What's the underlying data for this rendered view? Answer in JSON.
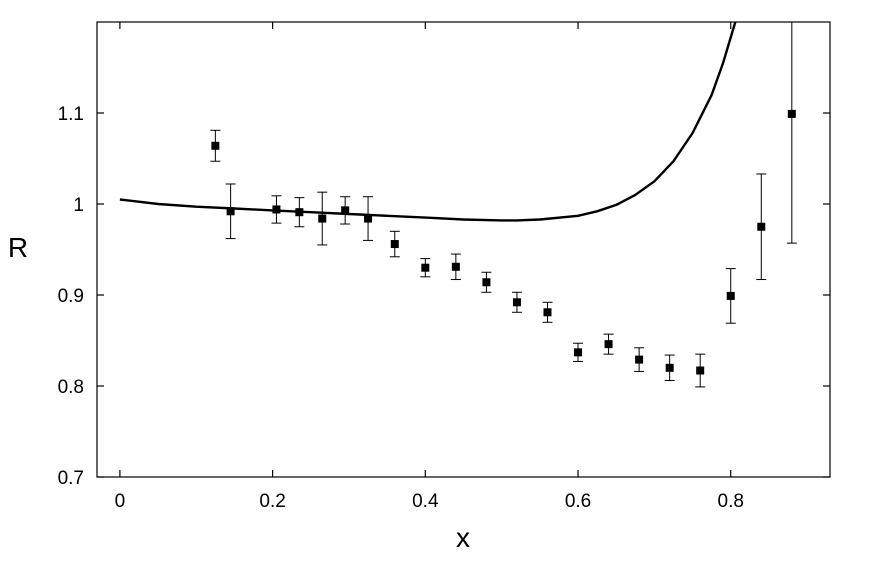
{
  "chart_data": {
    "type": "scatter",
    "title": "",
    "xlabel": "x",
    "ylabel": "R",
    "xlim": [
      -0.03,
      0.93
    ],
    "ylim": [
      0.7,
      1.2
    ],
    "x_ticks": [
      "0",
      "0.2",
      "0.4",
      "0.6",
      "0.8"
    ],
    "y_ticks": [
      "0.7",
      "0.8",
      "0.9",
      "1",
      "1.1"
    ],
    "grid": false,
    "legend": "none",
    "marker_color": "#000000",
    "series": [
      {
        "kind": "points-with-error-bars",
        "points": [
          {
            "x": 0.125,
            "y": 1.064,
            "err": 0.017
          },
          {
            "x": 0.145,
            "y": 0.992,
            "err": 0.03
          },
          {
            "x": 0.205,
            "y": 0.994,
            "err": 0.015
          },
          {
            "x": 0.235,
            "y": 0.991,
            "err": 0.016
          },
          {
            "x": 0.265,
            "y": 0.984,
            "err": 0.029
          },
          {
            "x": 0.295,
            "y": 0.993,
            "err": 0.015
          },
          {
            "x": 0.325,
            "y": 0.984,
            "err": 0.024
          },
          {
            "x": 0.36,
            "y": 0.956,
            "err": 0.014
          },
          {
            "x": 0.4,
            "y": 0.93,
            "err": 0.01
          },
          {
            "x": 0.44,
            "y": 0.931,
            "err": 0.014
          },
          {
            "x": 0.48,
            "y": 0.914,
            "err": 0.011
          },
          {
            "x": 0.52,
            "y": 0.892,
            "err": 0.011
          },
          {
            "x": 0.56,
            "y": 0.881,
            "err": 0.011
          },
          {
            "x": 0.6,
            "y": 0.837,
            "err": 0.01
          },
          {
            "x": 0.64,
            "y": 0.846,
            "err": 0.011
          },
          {
            "x": 0.68,
            "y": 0.829,
            "err": 0.013
          },
          {
            "x": 0.72,
            "y": 0.82,
            "err": 0.014
          },
          {
            "x": 0.76,
            "y": 0.817,
            "err": 0.018
          },
          {
            "x": 0.8,
            "y": 0.899,
            "err": 0.03
          },
          {
            "x": 0.84,
            "y": 0.975,
            "err": 0.058
          },
          {
            "x": 0.88,
            "y": 1.099,
            "err": 0.142
          }
        ]
      },
      {
        "kind": "line",
        "points": [
          {
            "x": 0.0,
            "y": 1.005
          },
          {
            "x": 0.05,
            "y": 1.0
          },
          {
            "x": 0.1,
            "y": 0.997
          },
          {
            "x": 0.15,
            "y": 0.995
          },
          {
            "x": 0.2,
            "y": 0.993
          },
          {
            "x": 0.25,
            "y": 0.991
          },
          {
            "x": 0.3,
            "y": 0.989
          },
          {
            "x": 0.35,
            "y": 0.987
          },
          {
            "x": 0.4,
            "y": 0.985
          },
          {
            "x": 0.45,
            "y": 0.983
          },
          {
            "x": 0.5,
            "y": 0.982
          },
          {
            "x": 0.52,
            "y": 0.982
          },
          {
            "x": 0.55,
            "y": 0.983
          },
          {
            "x": 0.6,
            "y": 0.987
          },
          {
            "x": 0.625,
            "y": 0.992
          },
          {
            "x": 0.65,
            "y": 0.999
          },
          {
            "x": 0.675,
            "y": 1.01
          },
          {
            "x": 0.7,
            "y": 1.025
          },
          {
            "x": 0.725,
            "y": 1.047
          },
          {
            "x": 0.75,
            "y": 1.078
          },
          {
            "x": 0.775,
            "y": 1.12
          },
          {
            "x": 0.79,
            "y": 1.155
          },
          {
            "x": 0.8,
            "y": 1.183
          },
          {
            "x": 0.806,
            "y": 1.2
          }
        ]
      }
    ]
  }
}
